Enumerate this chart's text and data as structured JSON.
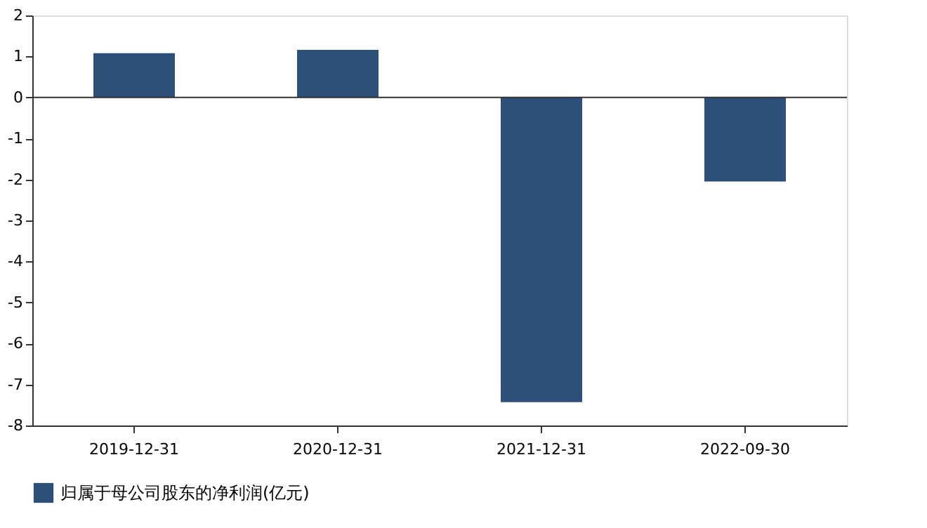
{
  "chart_data": {
    "type": "bar",
    "categories": [
      "2019-12-31",
      "2020-12-31",
      "2021-12-31",
      "2022-09-30"
    ],
    "series": [
      {
        "name": "归属于母公司股东的净利润(亿元)",
        "color": "#2d4e78",
        "values": [
          1.08,
          1.16,
          -7.43,
          -2.05
        ]
      }
    ],
    "ylim": [
      -8,
      2
    ],
    "yticks": [
      -8,
      -7,
      -6,
      -5,
      -4,
      -3,
      -2,
      -1,
      0,
      1,
      2
    ],
    "ref_lines": [
      {
        "axis": "y",
        "value": 0,
        "color": "#333333"
      }
    ],
    "grid": false,
    "legend": "bottom"
  }
}
